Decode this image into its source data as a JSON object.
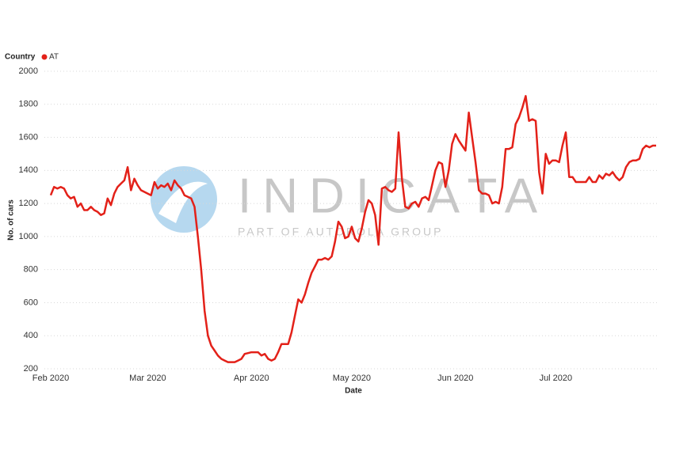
{
  "chart_data": {
    "type": "line",
    "legend_title": "Country",
    "x_label": "Date",
    "y_label": "No. of cars",
    "watermark": "INDICATA",
    "watermark_subtitle": "PART OF AUTOROLA GROUP",
    "categories": [
      "Feb 2020",
      null,
      null,
      null,
      null,
      null,
      null,
      null,
      null,
      null,
      null,
      null,
      null,
      null,
      null,
      null,
      null,
      null,
      null,
      null,
      null,
      null,
      null,
      null,
      null,
      null,
      null,
      null,
      null,
      "Mar 2020",
      null,
      null,
      null,
      null,
      null,
      null,
      null,
      null,
      null,
      null,
      null,
      null,
      null,
      null,
      null,
      null,
      null,
      null,
      null,
      null,
      null,
      null,
      null,
      null,
      null,
      null,
      null,
      null,
      null,
      null,
      "Apr 2020",
      null,
      null,
      null,
      null,
      null,
      null,
      null,
      null,
      null,
      null,
      null,
      null,
      null,
      null,
      null,
      null,
      null,
      null,
      null,
      null,
      null,
      null,
      null,
      null,
      null,
      null,
      null,
      null,
      null,
      "May 2020",
      null,
      null,
      null,
      null,
      null,
      null,
      null,
      null,
      null,
      null,
      null,
      null,
      null,
      null,
      null,
      null,
      null,
      null,
      null,
      null,
      null,
      null,
      null,
      null,
      null,
      null,
      null,
      null,
      null,
      null,
      "Jun 2020",
      null,
      null,
      null,
      null,
      null,
      null,
      null,
      null,
      null,
      null,
      null,
      null,
      null,
      null,
      null,
      null,
      null,
      null,
      null,
      null,
      null,
      null,
      null,
      null,
      null,
      null,
      null,
      null,
      null,
      "Jul 2020",
      null,
      null,
      null,
      null,
      null,
      null,
      null,
      null,
      null,
      null,
      null,
      null,
      null,
      null,
      null,
      null,
      null,
      null,
      null,
      null,
      null,
      null,
      null,
      null,
      null,
      null,
      null,
      null,
      null,
      null
    ],
    "series": [
      {
        "name": "AT",
        "color": "#e32119",
        "values": [
          1250,
          1300,
          1290,
          1300,
          1290,
          1250,
          1230,
          1240,
          1180,
          1200,
          1160,
          1160,
          1180,
          1160,
          1150,
          1130,
          1140,
          1230,
          1190,
          1260,
          1300,
          1320,
          1340,
          1420,
          1280,
          1350,
          1310,
          1280,
          1270,
          1260,
          1250,
          1330,
          1290,
          1310,
          1300,
          1320,
          1280,
          1340,
          1310,
          1290,
          1250,
          1240,
          1230,
          1180,
          1000,
          800,
          550,
          400,
          340,
          310,
          280,
          260,
          250,
          240,
          240,
          240,
          250,
          260,
          290,
          295,
          300,
          300,
          300,
          280,
          290,
          260,
          250,
          260,
          300,
          350,
          350,
          350,
          420,
          520,
          620,
          600,
          650,
          720,
          780,
          820,
          860,
          860,
          870,
          860,
          880,
          970,
          1090,
          1060,
          990,
          1000,
          1060,
          990,
          970,
          1050,
          1150,
          1220,
          1200,
          1130,
          950,
          1290,
          1300,
          1280,
          1270,
          1290,
          1630,
          1350,
          1180,
          1170,
          1200,
          1210,
          1180,
          1230,
          1240,
          1220,
          1310,
          1400,
          1450,
          1440,
          1300,
          1400,
          1560,
          1620,
          1580,
          1550,
          1520,
          1750,
          1600,
          1450,
          1280,
          1260,
          1260,
          1250,
          1200,
          1210,
          1200,
          1300,
          1530,
          1530,
          1540,
          1680,
          1720,
          1780,
          1850,
          1700,
          1710,
          1700,
          1390,
          1260,
          1500,
          1440,
          1460,
          1460,
          1450,
          1550,
          1630,
          1360,
          1360,
          1330,
          1330,
          1330,
          1330,
          1360,
          1330,
          1330,
          1370,
          1350,
          1380,
          1370,
          1390,
          1360,
          1340,
          1360,
          1420,
          1450,
          1460,
          1460,
          1470,
          1530,
          1550,
          1540,
          1550,
          1550
        ]
      }
    ],
    "ylim": [
      200,
      2000
    ],
    "yticks": [
      200,
      400,
      600,
      800,
      1000,
      1200,
      1400,
      1600,
      1800,
      2000
    ],
    "grid": true
  }
}
